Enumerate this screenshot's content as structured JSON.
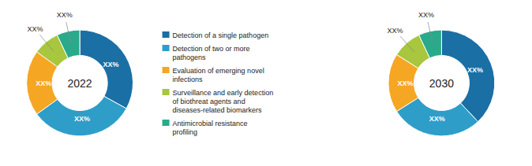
{
  "chart_data": [
    {
      "type": "donut",
      "title": "2022",
      "categories": [
        "Detection of a single pathogen",
        "Detection of two or more\npathogens",
        "Evaluation of emerging novel\ninfections",
        "Surveillance and early detection\nof biothreat agents and\ndiseases-related biomarkers",
        "Antimicrobial resistance\nprofiling"
      ],
      "values": [
        33,
        32,
        20,
        8,
        7
      ],
      "value_labels": [
        "XX%",
        "XX%",
        "XX%",
        "XX%",
        "XX%"
      ],
      "colors": [
        "#1a6fa5",
        "#2e9ec9",
        "#f5a623",
        "#a8c63e",
        "#2aaa8a"
      ],
      "data_labels": true,
      "legend": "center"
    },
    {
      "type": "donut",
      "title": "2030",
      "categories": [
        "Detection of a single pathogen",
        "Detection of two or more\npathogens",
        "Evaluation of emerging novel\ninfections",
        "Surveillance and early detection\nof biothreat agents and\ndiseases-related biomarkers",
        "Antimicrobial resistance\nprofiling"
      ],
      "values": [
        38,
        28,
        18,
        9,
        7
      ],
      "value_labels": [
        "XX%",
        "XX%",
        "XX%",
        "XX%",
        "XX%"
      ],
      "colors": [
        "#1a6fa5",
        "#2e9ec9",
        "#f5a623",
        "#a8c63e",
        "#2aaa8a"
      ],
      "data_labels": true
    }
  ]
}
